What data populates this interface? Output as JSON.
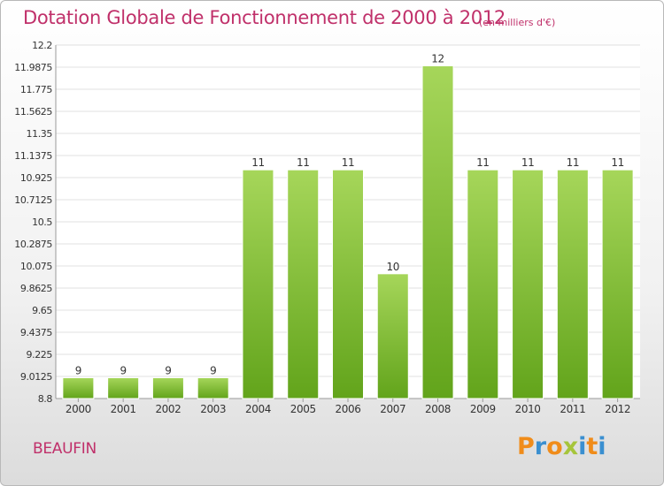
{
  "header": {
    "title": "Dotation Globale de Fonctionnement de 2000 à 2012",
    "unit": "(en milliers d'€)"
  },
  "footer": {
    "town": "BEAUFIN",
    "logo_text": "Proxiti",
    "logo_colors": [
      "#f08c1a",
      "#3a8fd0",
      "#f08c1a",
      "#a6c53b",
      "#3a8fd0",
      "#f08c1a",
      "#3a8fd0"
    ]
  },
  "colors": {
    "bar_light": "#a6d65a",
    "bar_dark": "#62a41b",
    "grid": "#e0e0e0",
    "text": "#333333",
    "accent": "#c0306a"
  },
  "chart_data": {
    "type": "bar",
    "title": "Dotation Globale de Fonctionnement de 2000 à 2012",
    "subtitle": "(en milliers d'€)",
    "categories": [
      "2000",
      "2001",
      "2002",
      "2003",
      "2004",
      "2005",
      "2006",
      "2007",
      "2008",
      "2009",
      "2010",
      "2011",
      "2012"
    ],
    "values": [
      9,
      9,
      9,
      9,
      11,
      11,
      11,
      10,
      12,
      11,
      11,
      11,
      11
    ],
    "value_labels": [
      "9",
      "9",
      "9",
      "9",
      "11",
      "11",
      "11",
      "10",
      "12",
      "11",
      "11",
      "11",
      "11"
    ],
    "ylim": [
      8.8,
      12.2
    ],
    "yticks": [
      "12.2",
      "11.9875",
      "11.775",
      "11.5625",
      "11.35",
      "11.1375",
      "10.925",
      "10.7125",
      "10.5",
      "10.2875",
      "10.075",
      "9.8625",
      "9.65",
      "9.4375",
      "9.225",
      "9.0125",
      "8.8"
    ],
    "grid": true,
    "legend": "none",
    "xlabel": "",
    "ylabel": ""
  }
}
